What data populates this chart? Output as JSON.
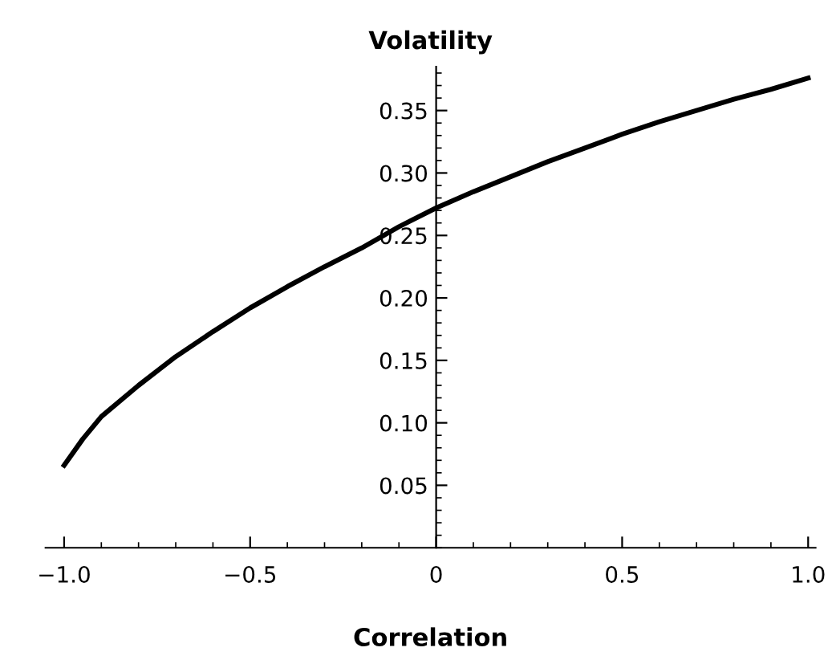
{
  "chart_data": {
    "type": "line",
    "title": "Volatility",
    "xlabel": "Correlation",
    "x": [
      -1.0,
      -0.95,
      -0.9,
      -0.8,
      -0.7,
      -0.6,
      -0.5,
      -0.4,
      -0.3,
      -0.2,
      -0.1,
      0.0,
      0.1,
      0.2,
      0.3,
      0.4,
      0.5,
      0.6,
      0.7,
      0.8,
      0.9,
      1.0
    ],
    "series": [
      {
        "color": "#000000",
        "values": [
          0.066,
          0.087,
          0.105,
          0.13,
          0.153,
          0.173,
          0.192,
          0.209,
          0.225,
          0.24,
          0.257,
          0.272,
          0.285,
          0.297,
          0.309,
          0.32,
          0.331,
          0.341,
          0.35,
          0.359,
          0.367,
          0.376
        ]
      }
    ],
    "xlim": [
      -1.05,
      1.02
    ],
    "ylim": [
      0,
      0.385
    ],
    "xticks": [
      {
        "value": -1.0,
        "label": "−1.0"
      },
      {
        "value": -0.5,
        "label": "−0.5"
      },
      0,
      0.5,
      {
        "value": 1.0,
        "label": "1.0"
      }
    ],
    "yticks": [
      0.05,
      {
        "value": 0.1,
        "label": "0.10"
      },
      0.15,
      {
        "value": 0.2,
        "label": "0.20"
      },
      0.25,
      {
        "value": 0.3,
        "label": "0.30"
      },
      0.35
    ],
    "grid": false,
    "legend": false,
    "marker": "none",
    "line_style": "solid"
  }
}
